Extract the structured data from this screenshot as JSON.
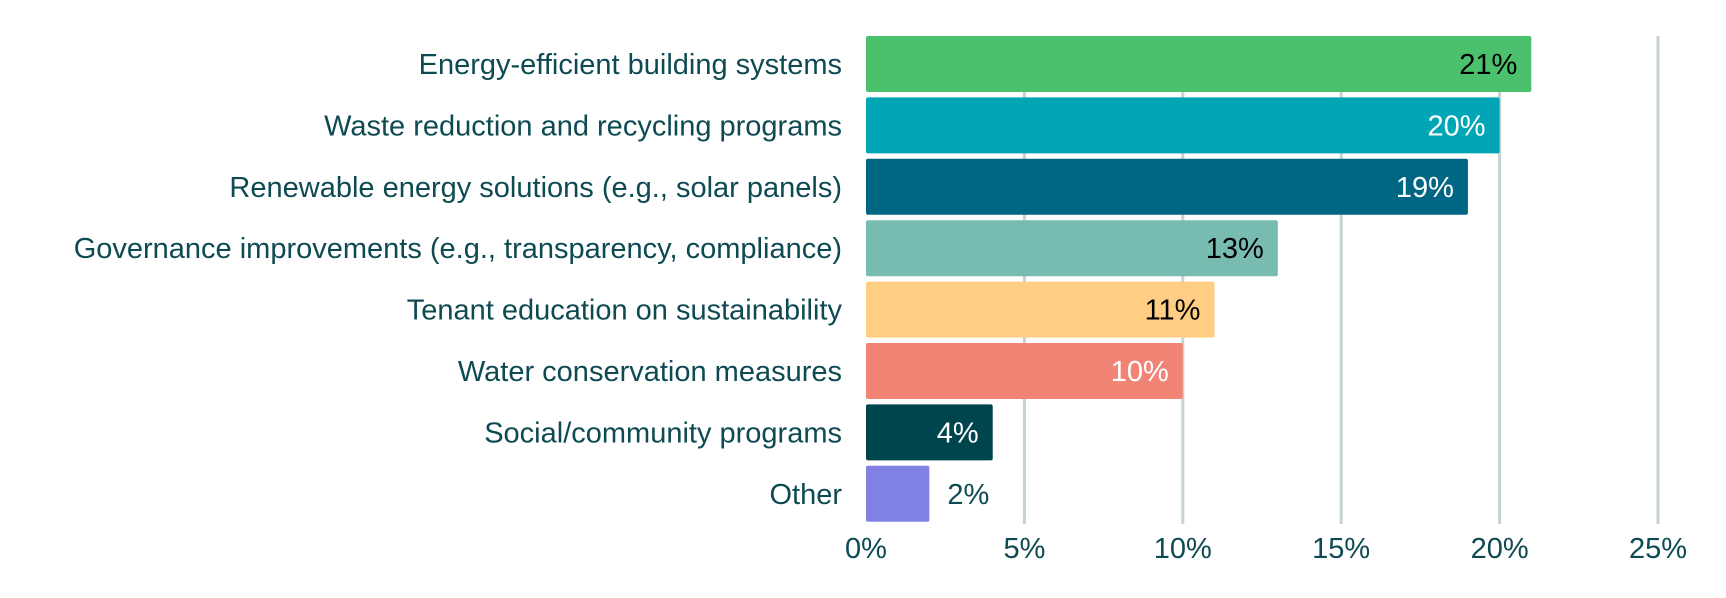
{
  "chart_data": {
    "type": "bar",
    "orientation": "horizontal",
    "title": "",
    "xlabel": "",
    "ylabel": "",
    "categories": [
      "Energy-efficient building systems",
      "Waste reduction and recycling programs",
      "Renewable energy solutions (e.g., solar panels)",
      "Governance improvements (e.g., transparency, compliance)",
      "Tenant education on sustainability",
      "Water conservation measures",
      "Social/community programs",
      "Other"
    ],
    "values": [
      21,
      20,
      19,
      13,
      11,
      10,
      4,
      2
    ],
    "value_labels": [
      "21%",
      "20%",
      "19%",
      "13%",
      "11%",
      "10%",
      "4%",
      "2%"
    ],
    "bar_colors": [
      "#4cc16d",
      "#00a6b5",
      "#006684",
      "#78bbb1",
      "#ffce84",
      "#f18475",
      "#00454d",
      "#8080e5"
    ],
    "value_label_colors": [
      "#000000",
      "#ffffff",
      "#ffffff",
      "#000000",
      "#000000",
      "#ffffff",
      "#ffffff",
      "#0e4a52"
    ],
    "value_label_inside": [
      true,
      true,
      true,
      true,
      true,
      true,
      true,
      false
    ],
    "xlim": [
      0,
      25
    ],
    "xticks": [
      0,
      5,
      10,
      15,
      20,
      25
    ],
    "xtick_labels": [
      "0%",
      "5%",
      "10%",
      "15%",
      "20%",
      "25%"
    ],
    "grid": "vertical",
    "grid_color": "#c5d3d6",
    "text_color": "#0e4a52",
    "legend": "none"
  }
}
